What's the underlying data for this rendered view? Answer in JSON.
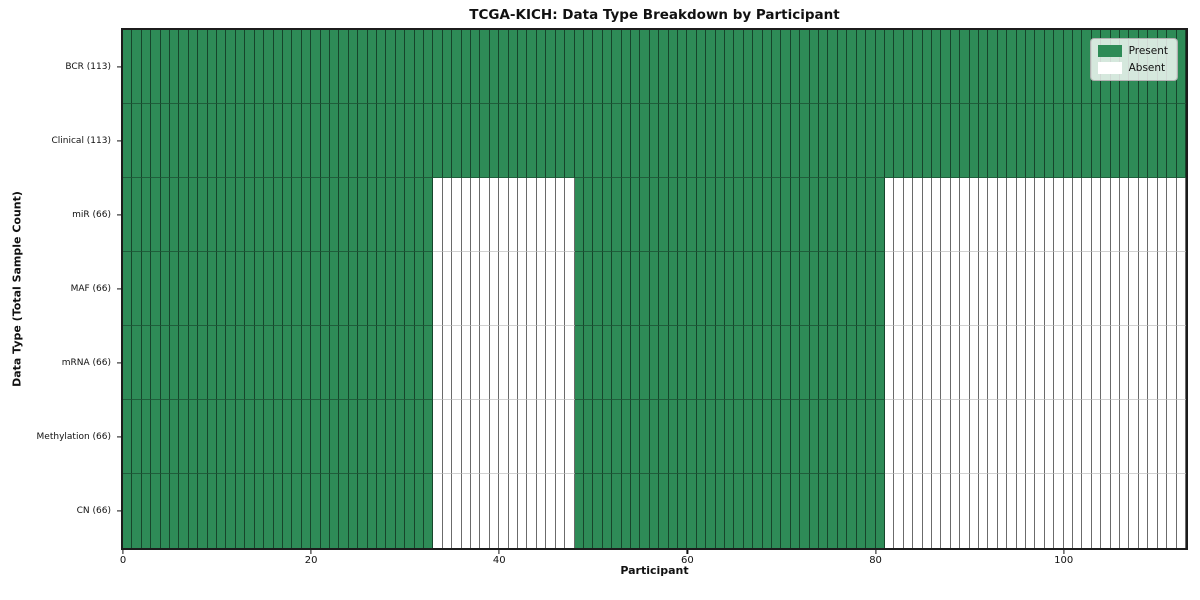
{
  "chart_data": {
    "type": "heatmap",
    "title": "TCGA-KICH: Data Type Breakdown by Participant",
    "xlabel": "Participant",
    "ylabel": "Data Type (Total Sample Count)",
    "xlim": [
      0,
      113
    ],
    "n_participants": 113,
    "x_ticks": [
      0,
      20,
      40,
      60,
      80,
      100
    ],
    "grid": false,
    "colors": {
      "present": "#2e8b57",
      "absent": "#ffffff"
    },
    "legend": {
      "position": "upper right",
      "entries": [
        {
          "label": "Present",
          "color": "#2e8b57"
        },
        {
          "label": "Absent",
          "color": "#ffffff"
        }
      ]
    },
    "rows": [
      {
        "label": "BCR (113)",
        "name": "BCR",
        "present_count": 113,
        "segments": [
          {
            "state": "present",
            "start": 0,
            "end": 113
          }
        ]
      },
      {
        "label": "Clinical (113)",
        "name": "Clinical",
        "present_count": 113,
        "segments": [
          {
            "state": "present",
            "start": 0,
            "end": 113
          }
        ]
      },
      {
        "label": "miR (66)",
        "name": "miR",
        "present_count": 66,
        "segments": [
          {
            "state": "present",
            "start": 0,
            "end": 33
          },
          {
            "state": "absent",
            "start": 33,
            "end": 48
          },
          {
            "state": "present",
            "start": 48,
            "end": 81
          },
          {
            "state": "absent",
            "start": 81,
            "end": 113
          }
        ]
      },
      {
        "label": "MAF (66)",
        "name": "MAF",
        "present_count": 66,
        "segments": [
          {
            "state": "present",
            "start": 0,
            "end": 33
          },
          {
            "state": "absent",
            "start": 33,
            "end": 48
          },
          {
            "state": "present",
            "start": 48,
            "end": 81
          },
          {
            "state": "absent",
            "start": 81,
            "end": 113
          }
        ]
      },
      {
        "label": "mRNA (66)",
        "name": "mRNA",
        "present_count": 66,
        "segments": [
          {
            "state": "present",
            "start": 0,
            "end": 33
          },
          {
            "state": "absent",
            "start": 33,
            "end": 48
          },
          {
            "state": "present",
            "start": 48,
            "end": 81
          },
          {
            "state": "absent",
            "start": 81,
            "end": 113
          }
        ]
      },
      {
        "label": "Methylation (66)",
        "name": "Methylation",
        "present_count": 66,
        "segments": [
          {
            "state": "present",
            "start": 0,
            "end": 33
          },
          {
            "state": "absent",
            "start": 33,
            "end": 48
          },
          {
            "state": "present",
            "start": 48,
            "end": 81
          },
          {
            "state": "absent",
            "start": 81,
            "end": 113
          }
        ]
      },
      {
        "label": "CN (66)",
        "name": "CN",
        "present_count": 66,
        "segments": [
          {
            "state": "present",
            "start": 0,
            "end": 33
          },
          {
            "state": "absent",
            "start": 33,
            "end": 48
          },
          {
            "state": "present",
            "start": 48,
            "end": 81
          },
          {
            "state": "absent",
            "start": 81,
            "end": 113
          }
        ]
      }
    ]
  }
}
